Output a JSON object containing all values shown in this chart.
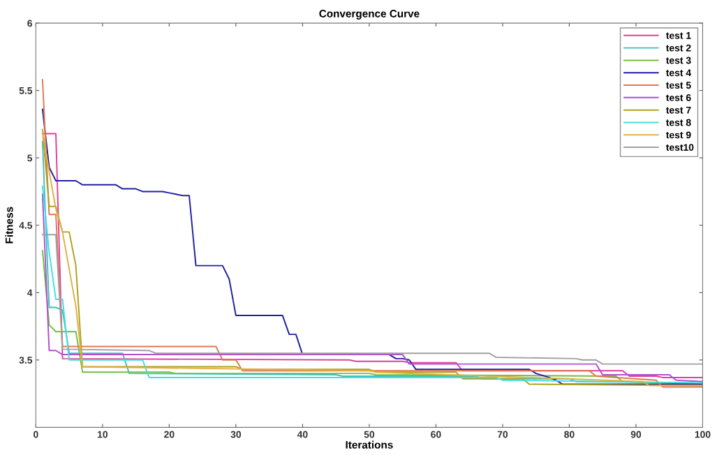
{
  "chart_data": {
    "type": "line",
    "title": "Convergence Curve",
    "xlabel": "Iterations",
    "ylabel": "Fitness",
    "xlim": [
      0,
      100
    ],
    "ylim": [
      3,
      6
    ],
    "xticks": [
      0,
      10,
      20,
      30,
      40,
      50,
      60,
      70,
      80,
      90,
      100
    ],
    "yticks": [
      3.5,
      4,
      4.5,
      5,
      5.5,
      6
    ],
    "grid": false,
    "legend": "top right",
    "marker": "none",
    "line_style": "solid",
    "series": [
      {
        "name": "test 1",
        "color": "#e0409a",
        "x": [
          1,
          3,
          4,
          47,
          48,
          55,
          56,
          63,
          64,
          88,
          89,
          93,
          94,
          100
        ],
        "values": [
          5.18,
          5.18,
          3.51,
          3.5,
          3.49,
          3.49,
          3.48,
          3.48,
          3.42,
          3.42,
          3.38,
          3.38,
          3.37,
          3.37
        ]
      },
      {
        "name": "test 2",
        "color": "#40c0c0",
        "x": [
          1,
          2,
          3,
          4,
          5,
          13,
          14,
          45,
          46,
          66,
          67,
          80,
          81,
          100
        ],
        "values": [
          5.12,
          3.89,
          3.89,
          3.87,
          3.55,
          3.55,
          3.4,
          3.39,
          3.38,
          3.38,
          3.36,
          3.36,
          3.34,
          3.33
        ]
      },
      {
        "name": "test 3",
        "color": "#70c040",
        "x": [
          1,
          2,
          3,
          6,
          7,
          20,
          21,
          50,
          51,
          87,
          88,
          100
        ],
        "values": [
          4.31,
          3.76,
          3.71,
          3.71,
          3.41,
          3.41,
          3.4,
          3.4,
          3.39,
          3.38,
          3.34,
          3.32
        ]
      },
      {
        "name": "test 4",
        "color": "#2020a0",
        "x": [
          1,
          2,
          3,
          6,
          7,
          12,
          13,
          15,
          16,
          19,
          20,
          21,
          22,
          23,
          24,
          28,
          29,
          30,
          37,
          38,
          39,
          40,
          53,
          54,
          55,
          56,
          57,
          74,
          75,
          77,
          78,
          79,
          100
        ],
        "values": [
          5.36,
          4.93,
          4.83,
          4.83,
          4.8,
          4.8,
          4.77,
          4.77,
          4.75,
          4.75,
          4.74,
          4.73,
          4.72,
          4.72,
          4.2,
          4.2,
          4.1,
          3.83,
          3.83,
          3.69,
          3.69,
          3.54,
          3.54,
          3.51,
          3.51,
          3.5,
          3.43,
          3.43,
          3.4,
          3.37,
          3.35,
          3.32,
          3.32
        ]
      },
      {
        "name": "test 5",
        "color": "#e07850",
        "x": [
          1,
          2,
          3,
          4,
          27,
          28,
          30,
          31,
          83,
          84,
          93,
          94,
          100
        ],
        "values": [
          5.58,
          4.58,
          4.58,
          3.6,
          3.6,
          3.5,
          3.5,
          3.42,
          3.42,
          3.38,
          3.35,
          3.3,
          3.3
        ]
      },
      {
        "name": "test 6",
        "color": "#b050d0",
        "x": [
          1,
          2,
          3,
          4,
          55,
          56,
          84,
          85,
          95,
          96,
          100
        ],
        "values": [
          4.73,
          3.57,
          3.57,
          3.54,
          3.54,
          3.47,
          3.47,
          3.39,
          3.39,
          3.35,
          3.34
        ]
      },
      {
        "name": "test 7",
        "color": "#b0a020",
        "x": [
          1,
          2,
          3,
          4,
          5,
          6,
          7,
          30,
          31,
          50,
          51,
          63,
          64,
          73,
          74,
          100
        ],
        "values": [
          5.21,
          4.64,
          4.64,
          4.45,
          4.45,
          4.2,
          3.45,
          3.45,
          3.43,
          3.43,
          3.41,
          3.41,
          3.36,
          3.36,
          3.32,
          3.31
        ]
      },
      {
        "name": "test 8",
        "color": "#40e0e0",
        "x": [
          1,
          2,
          3,
          4,
          5,
          16,
          17,
          69,
          70,
          100
        ],
        "values": [
          4.79,
          4.3,
          3.95,
          3.95,
          3.5,
          3.5,
          3.37,
          3.37,
          3.35,
          3.33
        ]
      },
      {
        "name": "test 9",
        "color": "#e0b040",
        "x": [
          1,
          2,
          3,
          4,
          6,
          7,
          50,
          51,
          91,
          92,
          100
        ],
        "values": [
          5.2,
          4.9,
          4.62,
          4.45,
          3.9,
          3.45,
          3.42,
          3.41,
          3.34,
          3.31,
          3.31
        ]
      },
      {
        "name": "test10",
        "color": "#a0a0a0",
        "x": [
          1,
          3,
          4,
          17,
          18,
          68,
          69,
          81,
          82,
          84,
          85,
          100
        ],
        "values": [
          4.43,
          4.43,
          3.58,
          3.57,
          3.55,
          3.55,
          3.52,
          3.51,
          3.5,
          3.5,
          3.47,
          3.47
        ]
      }
    ]
  }
}
